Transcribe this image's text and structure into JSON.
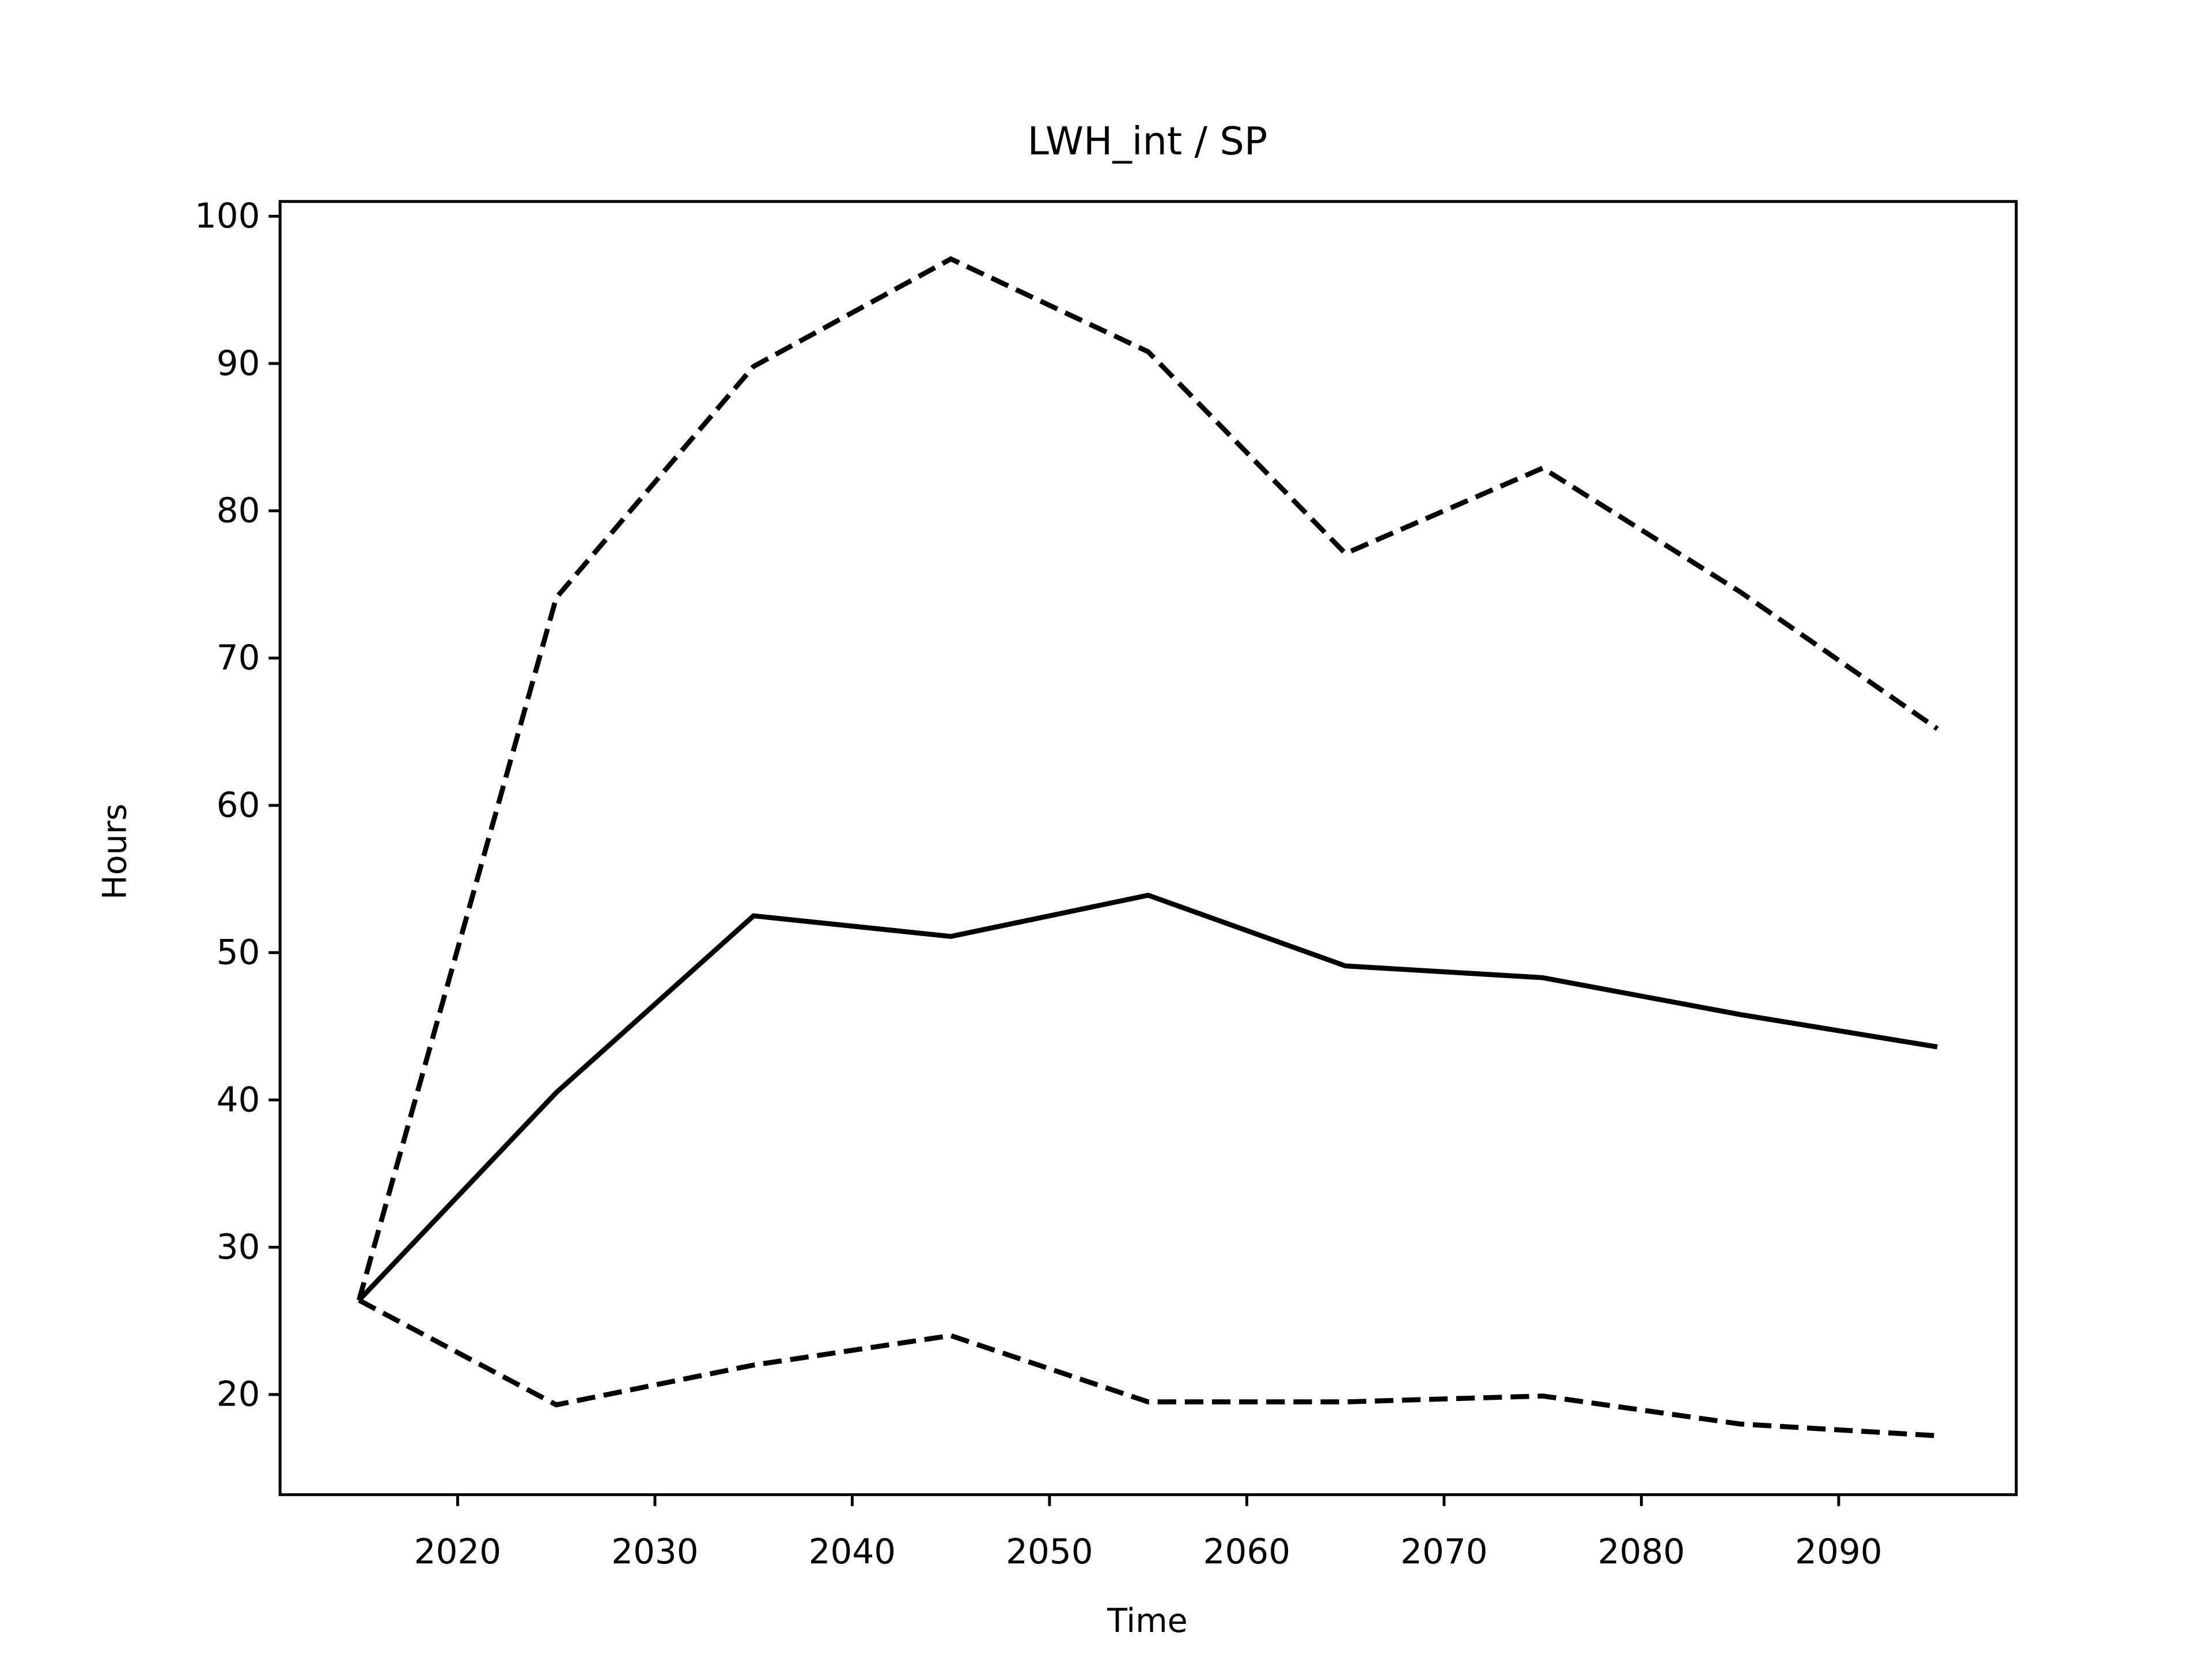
{
  "chart_data": {
    "type": "line",
    "title": "LWH_int / SP",
    "xlabel": "Time",
    "ylabel": "Hours",
    "x": [
      2015,
      2025,
      2035,
      2045,
      2055,
      2065,
      2075,
      2085,
      2095
    ],
    "series": [
      {
        "color": "#000000",
        "dashed": false,
        "values": [
          26.4,
          40.5,
          52.5,
          51.1,
          53.9,
          49.1,
          48.3,
          45.8,
          43.6
        ]
      },
      {
        "color": "#000000",
        "dashed": true,
        "values": [
          26.4,
          74.1,
          89.8,
          97.1,
          90.8,
          77.1,
          82.9,
          74.5,
          65.2
        ]
      },
      {
        "color": "#000000",
        "dashed": true,
        "values": [
          26.4,
          19.3,
          22.0,
          24.0,
          19.5,
          19.5,
          19.9,
          18.0,
          17.2
        ]
      }
    ],
    "xlim": [
      2011,
      2099
    ],
    "xticks": [
      2020,
      2030,
      2040,
      2050,
      2060,
      2070,
      2080,
      2090
    ],
    "ylim": [
      13.2,
      101
    ],
    "yticks": [
      20,
      30,
      40,
      50,
      60,
      70,
      80,
      90,
      100
    ],
    "grid": false
  }
}
